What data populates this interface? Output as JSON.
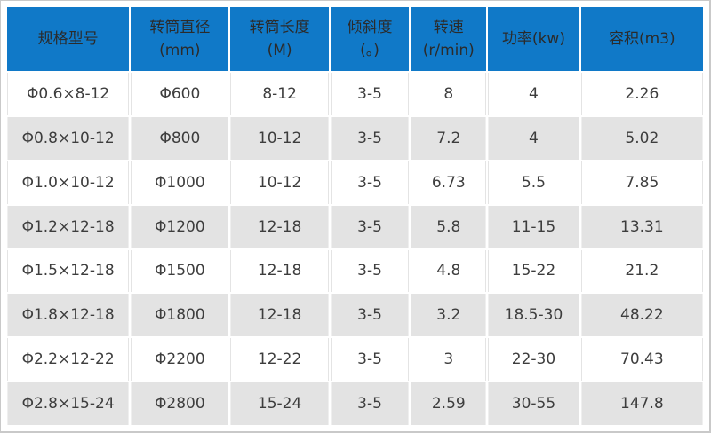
{
  "colors": {
    "header_bg": "#1079C8",
    "header_text": "#2B2B2B",
    "row_bg": "#FFFFFF",
    "row_alt_bg": "#E3E3E3",
    "body_text": "#3D3D3D",
    "frame_border": "#C9C9C9"
  },
  "chart_data": {
    "type": "table",
    "title": "",
    "columns": [
      {
        "line1": "规格型号",
        "line2": ""
      },
      {
        "line1": "转筒直径",
        "line2": "(mm)"
      },
      {
        "line1": "转筒长度",
        "line2": "(M)"
      },
      {
        "line1": "倾斜度",
        "line2": "(。)"
      },
      {
        "line1": "转速",
        "line2": "(r/min)"
      },
      {
        "line1": "功率(kw)",
        "line2": ""
      },
      {
        "line1": "容积(m3)",
        "line2": ""
      }
    ],
    "rows": [
      [
        "Φ0.6×8-12",
        "Φ600",
        "8-12",
        "3-5",
        "8",
        "4",
        "2.26"
      ],
      [
        "Φ0.8×10-12",
        "Φ800",
        "10-12",
        "3-5",
        "7.2",
        "4",
        "5.02"
      ],
      [
        "Φ1.0×10-12",
        "Φ1000",
        "10-12",
        "3-5",
        "6.73",
        "5.5",
        "7.85"
      ],
      [
        "Φ1.2×12-18",
        "Φ1200",
        "12-18",
        "3-5",
        "5.8",
        "11-15",
        "13.31"
      ],
      [
        "Φ1.5×12-18",
        "Φ1500",
        "12-18",
        "3-5",
        "4.8",
        "15-22",
        "21.2"
      ],
      [
        "Φ1.8×12-18",
        "Φ1800",
        "12-18",
        "3-5",
        "3.2",
        "18.5-30",
        "48.22"
      ],
      [
        "Φ2.2×12-22",
        "Φ2200",
        "12-22",
        "3-5",
        "3",
        "22-30",
        "70.43"
      ],
      [
        "Φ2.8×15-24",
        "Φ2800",
        "15-24",
        "3-5",
        "2.59",
        "30-55",
        "147.8"
      ]
    ]
  }
}
